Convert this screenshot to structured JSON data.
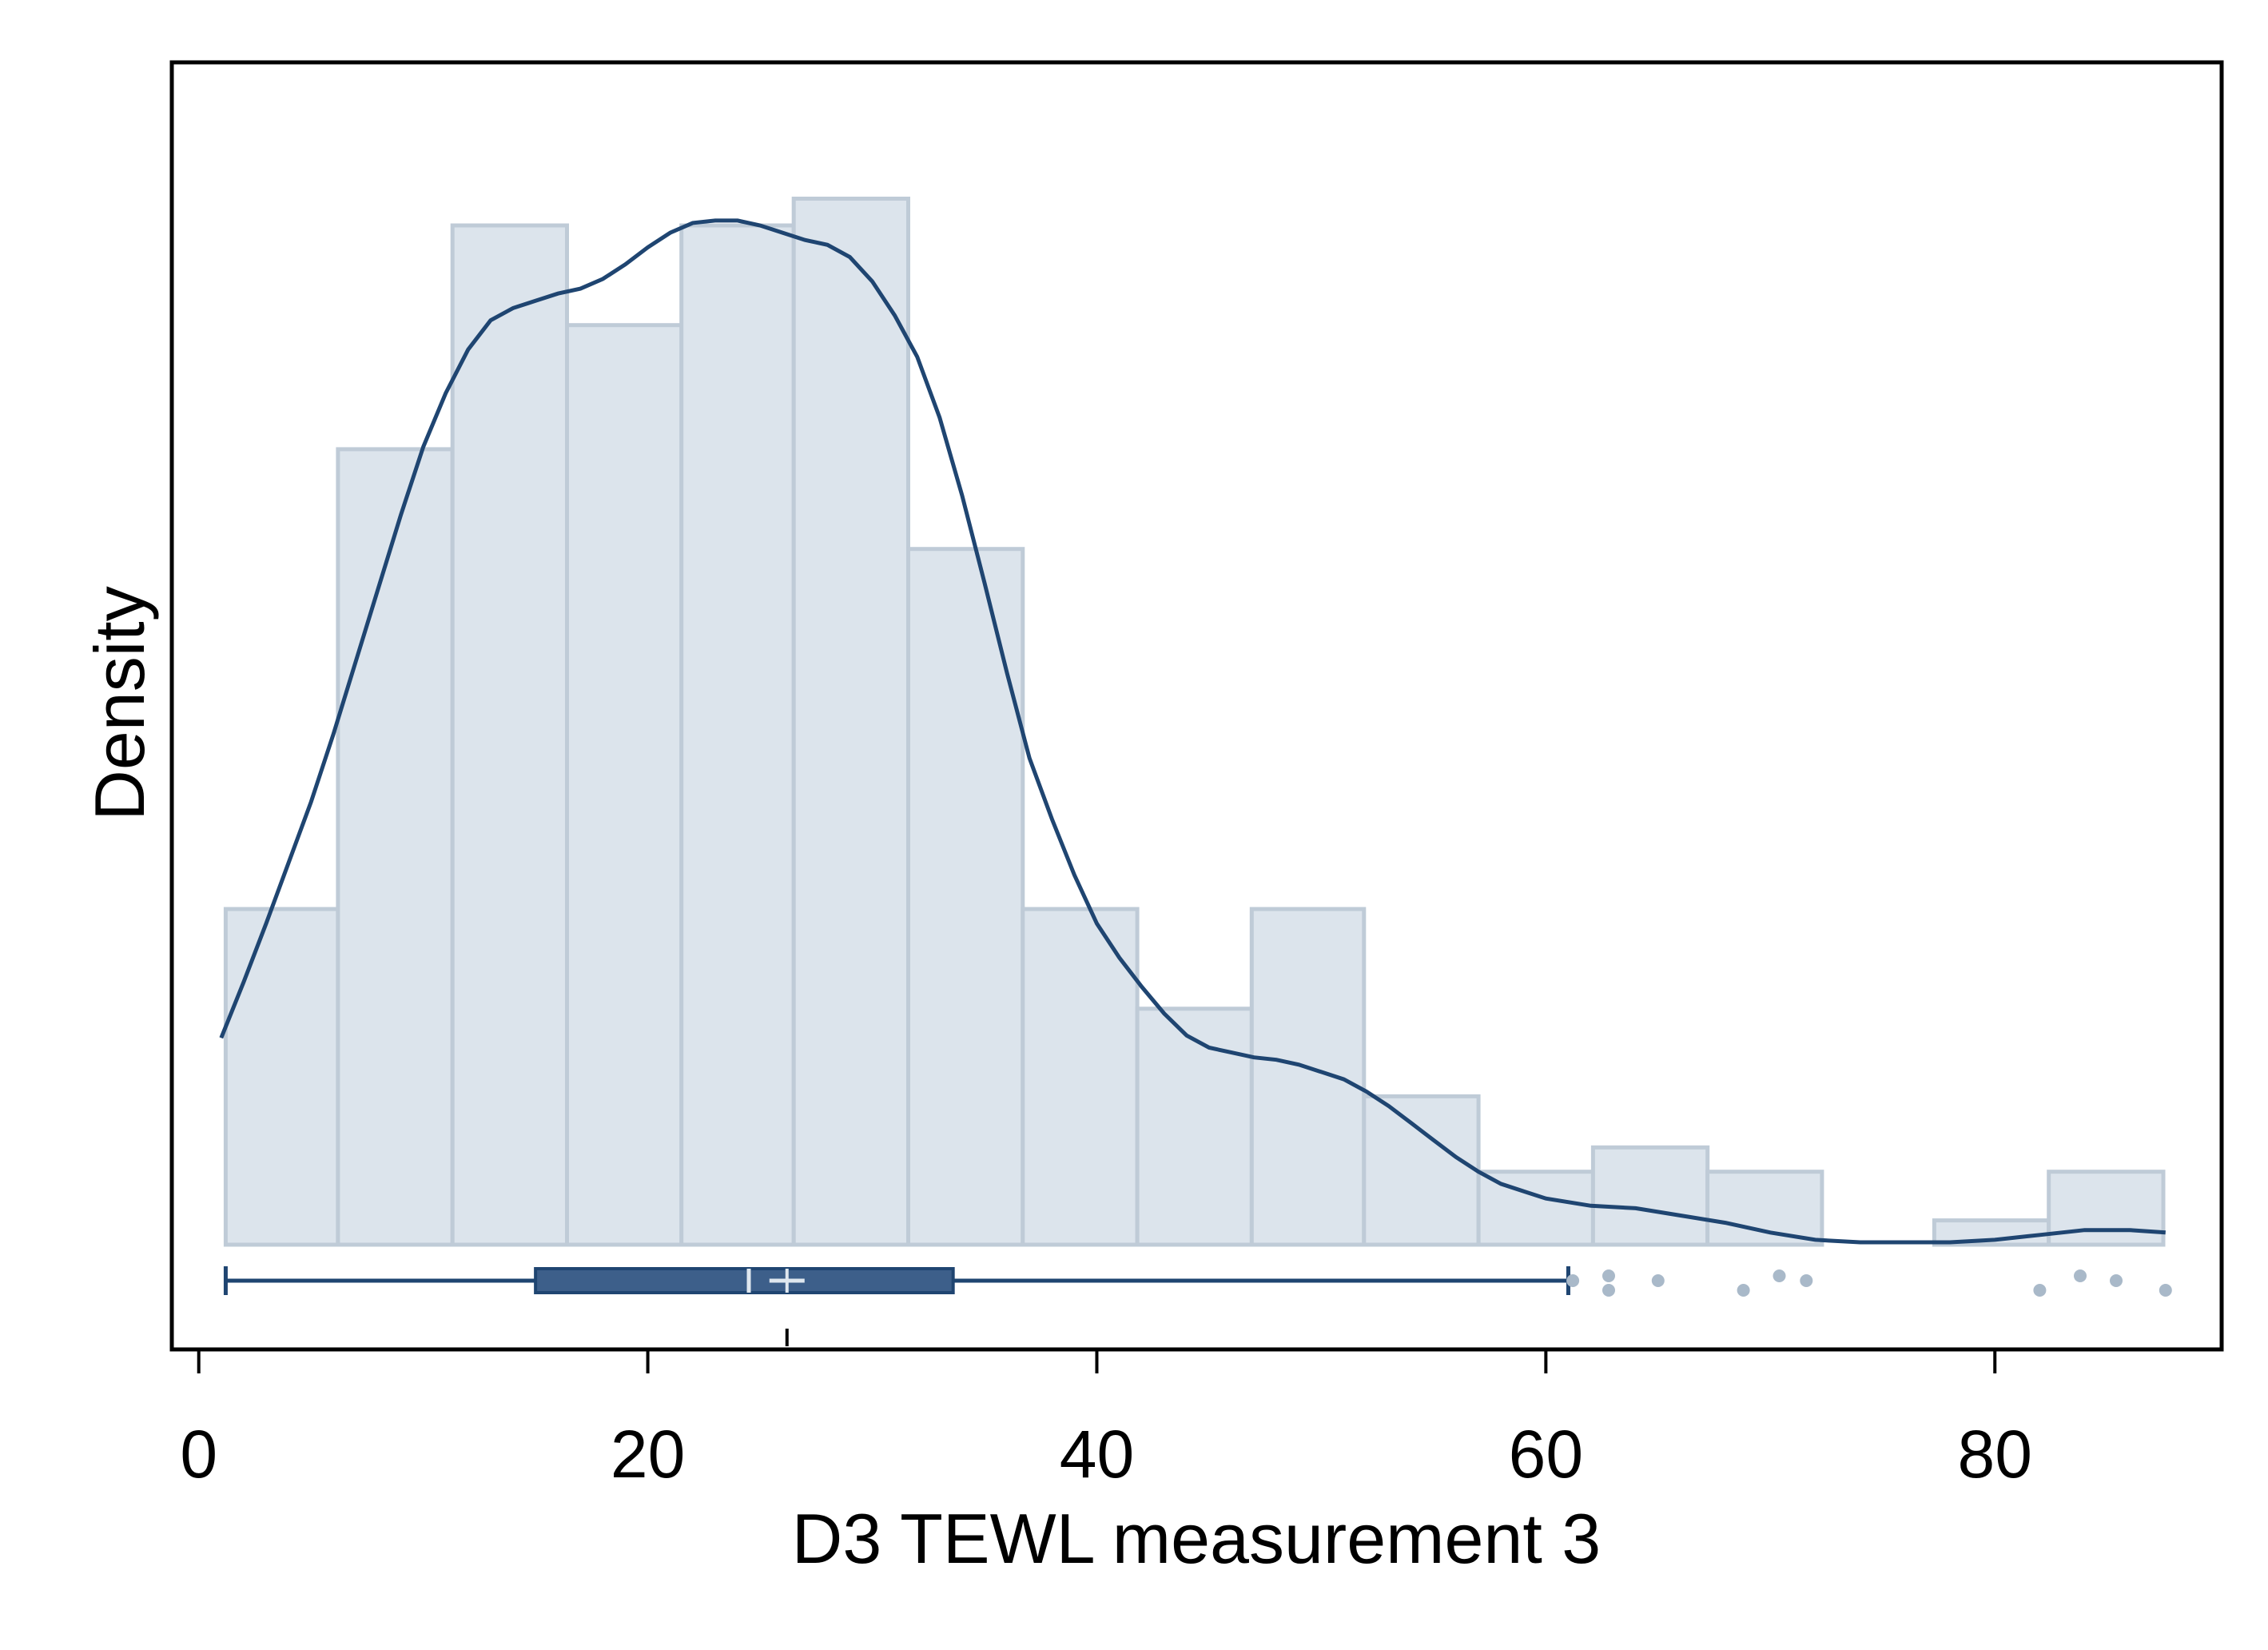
{
  "colors": {
    "bar_fill": "#dce4ec",
    "bar_stroke": "#bfcbd7",
    "line": "#1f4571",
    "box_fill": "#3d5f8a",
    "outlier": "#a9b9c9",
    "median": "#dfe7ef"
  },
  "chart_data": {
    "type": "bar",
    "subtype": "histogram with kernel density and horizontal box plot",
    "title": "",
    "xlabel": "D3 TEWL measurement 3",
    "ylabel": "Density",
    "xlim": [
      -1.2,
      90.1
    ],
    "x_ticks": [
      0,
      20,
      40,
      60,
      80
    ],
    "x_tick_labels": [
      "0",
      "20",
      "40",
      "60",
      "80"
    ],
    "ylim": [
      0,
      0.0465
    ],
    "y_ticks_shown": false,
    "grid": false,
    "legend": "none",
    "histogram": {
      "bin_edges": [
        1.2,
        6.2,
        11.3,
        16.4,
        21.5,
        26.5,
        31.6,
        36.7,
        41.8,
        46.9,
        51.9,
        57.0,
        62.1,
        67.2,
        72.3,
        77.3,
        82.4,
        87.5
      ],
      "density": [
        0.0138,
        0.0327,
        0.0419,
        0.0378,
        0.0419,
        0.043,
        0.0286,
        0.0138,
        0.0097,
        0.0138,
        0.0061,
        0.003,
        0.004,
        0.003,
        0.0,
        0.001,
        0.003
      ]
    },
    "density_curve": {
      "x": [
        1.0,
        2.0,
        3.0,
        4.0,
        5.0,
        6.0,
        7.0,
        8.0,
        9.0,
        10.0,
        11.0,
        12.0,
        13.0,
        14.0,
        15.0,
        16.0,
        17.0,
        18.0,
        19.0,
        20.0,
        21.0,
        22.0,
        23.0,
        24.0,
        25.0,
        26.0,
        27.0,
        28.0,
        29.0,
        30.0,
        31.0,
        32.0,
        33.0,
        34.0,
        35.0,
        36.0,
        37.0,
        38.0,
        39.0,
        40.0,
        41.0,
        42.0,
        43.0,
        44.0,
        45.0,
        46.0,
        47.0,
        48.0,
        49.0,
        50.0,
        51.0,
        52.0,
        53.0,
        54.0,
        55.0,
        56.0,
        57.0,
        58.0,
        59.0,
        60.0,
        62.0,
        64.0,
        66.0,
        68.0,
        70.0,
        72.0,
        74.0,
        76.0,
        78.0,
        80.0,
        82.0,
        84.0,
        86.0,
        87.6
      ],
      "y": [
        0.0085,
        0.0108,
        0.0132,
        0.0157,
        0.0182,
        0.021,
        0.024,
        0.027,
        0.03,
        0.0328,
        0.035,
        0.0368,
        0.038,
        0.0385,
        0.0388,
        0.0391,
        0.0393,
        0.0397,
        0.0403,
        0.041,
        0.0416,
        0.042,
        0.0421,
        0.0421,
        0.0419,
        0.0416,
        0.0413,
        0.0411,
        0.0406,
        0.0396,
        0.0382,
        0.0365,
        0.034,
        0.0308,
        0.0272,
        0.0235,
        0.02,
        0.0175,
        0.0152,
        0.0132,
        0.0118,
        0.0106,
        0.0095,
        0.0086,
        0.0081,
        0.0079,
        0.0077,
        0.0076,
        0.0074,
        0.0071,
        0.0068,
        0.0063,
        0.0057,
        0.005,
        0.0043,
        0.0036,
        0.003,
        0.0025,
        0.0022,
        0.0019,
        0.0016,
        0.0015,
        0.0012,
        0.0009,
        0.0005,
        0.0002,
        0.0001,
        0.0001,
        0.0001,
        0.0002,
        0.0004,
        0.0006,
        0.0006,
        0.0005
      ]
    },
    "boxplot": {
      "whisker_low": 1.2,
      "q1": 15.0,
      "median": 24.5,
      "mean": 26.2,
      "q3": 33.6,
      "whisker_high": 61.0,
      "outliers": [
        61.2,
        62.8,
        62.8,
        65.0,
        68.8,
        70.4,
        71.6,
        82.0,
        83.8,
        85.4,
        87.6
      ]
    }
  }
}
